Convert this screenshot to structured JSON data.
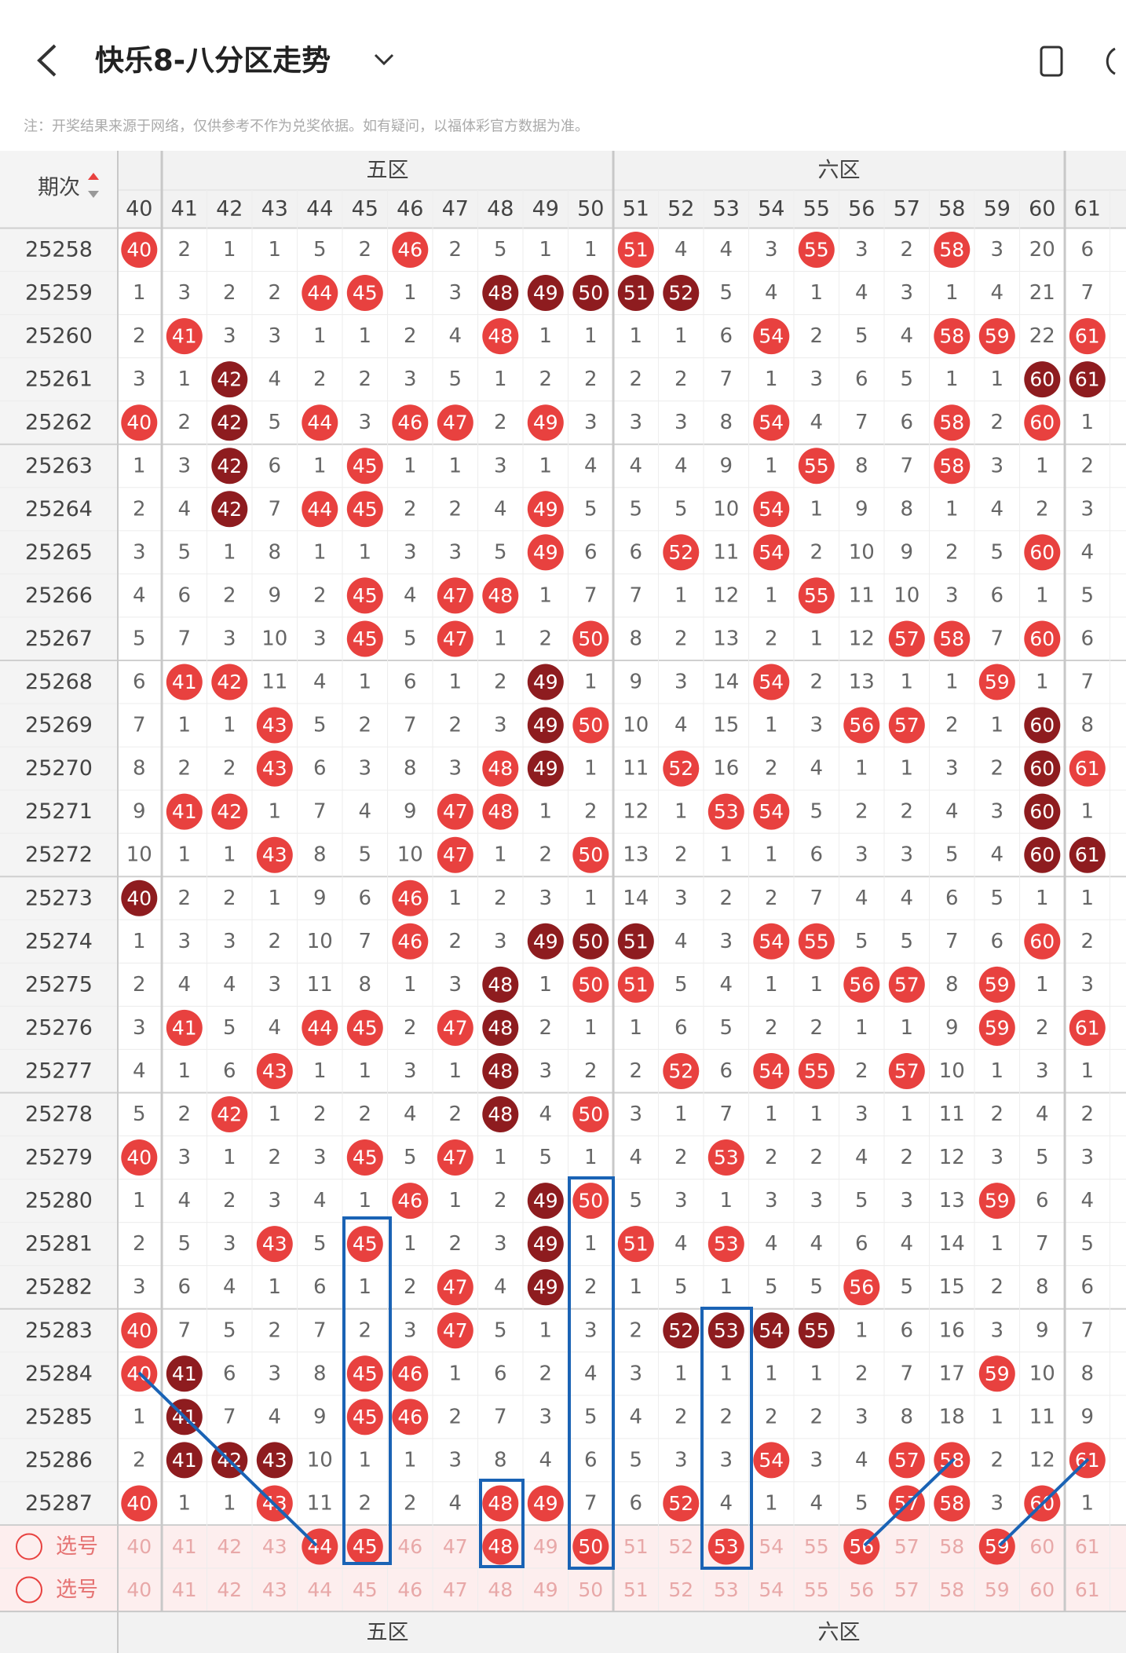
{
  "header": {
    "title": "快乐8-八分区走势",
    "note": "注：开奖结果来源于网络，仅供参考不作为兑奖依据。如有疑问，以福体彩官方数据为准。"
  },
  "table": {
    "period_header": "期次",
    "zones": [
      "五区",
      "六区"
    ],
    "columns": [
      40,
      41,
      42,
      43,
      44,
      45,
      46,
      47,
      48,
      49,
      50,
      51,
      52,
      53,
      54,
      55,
      56,
      57,
      58,
      59,
      60,
      61
    ],
    "rows": [
      {
        "issue": "25258",
        "values": [
          40,
          2,
          1,
          1,
          5,
          2,
          46,
          2,
          5,
          1,
          1,
          51,
          4,
          4,
          3,
          55,
          3,
          2,
          58,
          3,
          20,
          6
        ],
        "dark": []
      },
      {
        "issue": "25259",
        "values": [
          1,
          3,
          2,
          2,
          44,
          45,
          1,
          3,
          48,
          49,
          50,
          51,
          52,
          5,
          4,
          1,
          4,
          3,
          1,
          4,
          21,
          7
        ],
        "dark": [
          48,
          49,
          50,
          51,
          52
        ]
      },
      {
        "issue": "25260",
        "values": [
          2,
          41,
          3,
          3,
          1,
          1,
          2,
          4,
          48,
          1,
          1,
          1,
          1,
          6,
          54,
          2,
          5,
          4,
          58,
          59,
          22,
          61
        ],
        "dark": []
      },
      {
        "issue": "25261",
        "values": [
          3,
          1,
          42,
          4,
          2,
          2,
          3,
          5,
          1,
          2,
          2,
          2,
          2,
          7,
          1,
          3,
          6,
          5,
          1,
          1,
          60,
          61
        ],
        "dark": [
          42,
          60,
          61
        ]
      },
      {
        "issue": "25262",
        "values": [
          40,
          2,
          42,
          5,
          44,
          3,
          46,
          47,
          2,
          49,
          3,
          3,
          3,
          8,
          54,
          4,
          7,
          6,
          58,
          2,
          60,
          1
        ],
        "dark": [
          42
        ]
      },
      {
        "issue": "25263",
        "values": [
          1,
          3,
          42,
          6,
          1,
          45,
          1,
          1,
          3,
          1,
          4,
          4,
          4,
          9,
          1,
          55,
          8,
          7,
          58,
          3,
          1,
          2
        ],
        "dark": [
          42
        ]
      },
      {
        "issue": "25264",
        "values": [
          2,
          4,
          42,
          7,
          44,
          45,
          2,
          2,
          4,
          49,
          5,
          5,
          5,
          10,
          54,
          1,
          9,
          8,
          1,
          4,
          2,
          3
        ],
        "dark": [
          42
        ]
      },
      {
        "issue": "25265",
        "values": [
          3,
          5,
          1,
          8,
          1,
          1,
          3,
          3,
          5,
          49,
          6,
          6,
          52,
          11,
          54,
          2,
          10,
          9,
          2,
          5,
          60,
          4
        ],
        "dark": []
      },
      {
        "issue": "25266",
        "values": [
          4,
          6,
          2,
          9,
          2,
          45,
          4,
          47,
          48,
          1,
          7,
          7,
          1,
          12,
          1,
          55,
          11,
          10,
          3,
          6,
          1,
          5
        ],
        "dark": []
      },
      {
        "issue": "25267",
        "values": [
          5,
          7,
          3,
          10,
          3,
          45,
          5,
          47,
          1,
          2,
          50,
          8,
          2,
          13,
          2,
          1,
          12,
          57,
          58,
          7,
          60,
          6
        ],
        "dark": []
      },
      {
        "issue": "25268",
        "values": [
          6,
          41,
          42,
          11,
          4,
          1,
          6,
          1,
          2,
          49,
          1,
          9,
          3,
          14,
          54,
          2,
          13,
          1,
          1,
          59,
          1,
          7
        ],
        "dark": [
          49
        ]
      },
      {
        "issue": "25269",
        "values": [
          7,
          1,
          1,
          43,
          5,
          2,
          7,
          2,
          3,
          49,
          50,
          10,
          4,
          15,
          1,
          3,
          56,
          57,
          2,
          1,
          60,
          8
        ],
        "dark": [
          49,
          60
        ]
      },
      {
        "issue": "25270",
        "values": [
          8,
          2,
          2,
          43,
          6,
          3,
          8,
          3,
          48,
          49,
          1,
          11,
          52,
          16,
          2,
          4,
          1,
          1,
          3,
          2,
          60,
          61
        ],
        "dark": [
          49,
          60
        ]
      },
      {
        "issue": "25271",
        "values": [
          9,
          41,
          42,
          1,
          7,
          4,
          9,
          47,
          48,
          1,
          2,
          12,
          1,
          53,
          54,
          5,
          2,
          2,
          4,
          3,
          60,
          1
        ],
        "dark": [
          60
        ]
      },
      {
        "issue": "25272",
        "values": [
          10,
          1,
          1,
          43,
          8,
          5,
          10,
          47,
          1,
          2,
          50,
          13,
          2,
          1,
          1,
          6,
          3,
          3,
          5,
          4,
          60,
          61
        ],
        "dark": [
          60,
          61
        ]
      },
      {
        "issue": "25273",
        "values": [
          40,
          2,
          2,
          1,
          9,
          6,
          46,
          1,
          2,
          3,
          1,
          14,
          3,
          2,
          2,
          7,
          4,
          4,
          6,
          5,
          1,
          1
        ],
        "dark": [
          40
        ]
      },
      {
        "issue": "25274",
        "values": [
          1,
          3,
          3,
          2,
          10,
          7,
          46,
          2,
          3,
          49,
          50,
          51,
          4,
          3,
          54,
          55,
          5,
          5,
          7,
          6,
          60,
          2
        ],
        "dark": [
          49,
          50,
          51
        ]
      },
      {
        "issue": "25275",
        "values": [
          2,
          4,
          4,
          3,
          11,
          8,
          1,
          3,
          48,
          1,
          50,
          51,
          5,
          4,
          1,
          1,
          56,
          57,
          8,
          59,
          1,
          3
        ],
        "dark": [
          48
        ]
      },
      {
        "issue": "25276",
        "values": [
          3,
          41,
          5,
          4,
          44,
          45,
          2,
          47,
          48,
          2,
          1,
          1,
          6,
          5,
          2,
          2,
          1,
          1,
          9,
          59,
          2,
          61
        ],
        "dark": [
          48
        ]
      },
      {
        "issue": "25277",
        "values": [
          4,
          1,
          6,
          43,
          1,
          1,
          3,
          1,
          48,
          3,
          2,
          2,
          52,
          6,
          54,
          55,
          2,
          57,
          10,
          1,
          3,
          1
        ],
        "dark": [
          48
        ]
      },
      {
        "issue": "25278",
        "values": [
          5,
          2,
          42,
          1,
          2,
          2,
          4,
          2,
          48,
          4,
          50,
          3,
          1,
          7,
          1,
          1,
          3,
          1,
          11,
          2,
          4,
          2
        ],
        "dark": [
          48
        ]
      },
      {
        "issue": "25279",
        "values": [
          40,
          3,
          1,
          2,
          3,
          45,
          5,
          47,
          1,
          5,
          1,
          4,
          2,
          53,
          2,
          2,
          4,
          2,
          12,
          3,
          5,
          3
        ],
        "dark": []
      },
      {
        "issue": "25280",
        "values": [
          1,
          4,
          2,
          3,
          4,
          1,
          46,
          1,
          2,
          49,
          50,
          5,
          3,
          1,
          3,
          3,
          5,
          3,
          13,
          59,
          6,
          4
        ],
        "dark": [
          49
        ]
      },
      {
        "issue": "25281",
        "values": [
          2,
          5,
          3,
          43,
          5,
          45,
          1,
          2,
          3,
          49,
          1,
          51,
          4,
          53,
          4,
          4,
          6,
          4,
          14,
          1,
          7,
          5
        ],
        "dark": [
          49
        ]
      },
      {
        "issue": "25282",
        "values": [
          3,
          6,
          4,
          1,
          6,
          1,
          2,
          47,
          4,
          49,
          2,
          1,
          5,
          1,
          5,
          5,
          56,
          5,
          15,
          2,
          8,
          6
        ],
        "dark": [
          49
        ]
      },
      {
        "issue": "25283",
        "values": [
          40,
          7,
          5,
          2,
          7,
          2,
          3,
          47,
          5,
          1,
          3,
          2,
          52,
          53,
          54,
          55,
          1,
          6,
          16,
          3,
          9,
          7
        ],
        "dark": [
          52,
          53,
          54,
          55
        ]
      },
      {
        "issue": "25284",
        "values": [
          40,
          41,
          6,
          3,
          8,
          45,
          46,
          1,
          6,
          2,
          4,
          3,
          1,
          1,
          1,
          1,
          2,
          7,
          17,
          59,
          10,
          8
        ],
        "dark": [
          41
        ]
      },
      {
        "issue": "25285",
        "values": [
          1,
          41,
          7,
          4,
          9,
          45,
          46,
          2,
          7,
          3,
          5,
          4,
          2,
          2,
          2,
          2,
          3,
          8,
          18,
          1,
          11,
          9
        ],
        "dark": [
          41
        ]
      },
      {
        "issue": "25286",
        "values": [
          2,
          41,
          42,
          43,
          10,
          1,
          1,
          3,
          8,
          4,
          6,
          5,
          3,
          3,
          54,
          3,
          4,
          57,
          58,
          2,
          12,
          61
        ],
        "dark": [
          41,
          42,
          43
        ]
      },
      {
        "issue": "25287",
        "values": [
          40,
          1,
          1,
          43,
          11,
          2,
          2,
          4,
          48,
          49,
          7,
          6,
          52,
          4,
          1,
          4,
          5,
          57,
          58,
          3,
          60,
          1
        ],
        "dark": []
      }
    ],
    "select_rows": [
      {
        "label": "选号",
        "selected": [
          44,
          45,
          48,
          50,
          53,
          56,
          59
        ]
      },
      {
        "label": "选号",
        "selected": []
      }
    ]
  }
}
